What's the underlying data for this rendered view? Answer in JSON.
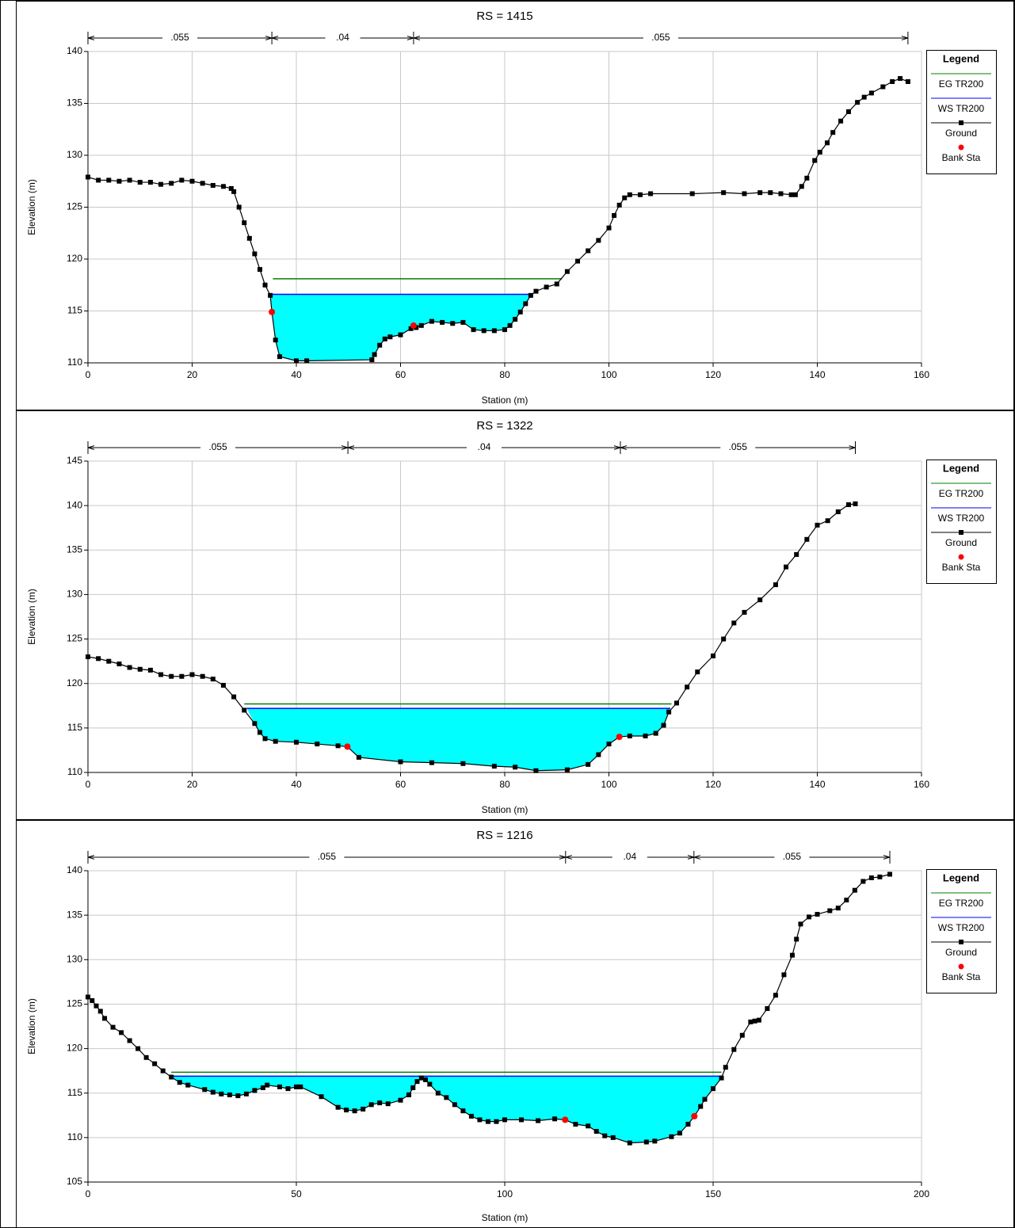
{
  "chart_data": [
    {
      "type": "line",
      "title": "RS = 1415",
      "x_label": "Station (m)",
      "y_label": "Elevation (m)",
      "xlim": [
        0,
        160
      ],
      "xticks": [
        0,
        20,
        40,
        60,
        80,
        100,
        120,
        140,
        160
      ],
      "ylim": [
        110,
        140
      ],
      "yticks": [
        110,
        115,
        120,
        125,
        130,
        135,
        140
      ],
      "grid": true,
      "legend_title": "Legend",
      "legend": "upper right",
      "n_labels": [
        ".055",
        ".04",
        ".055"
      ],
      "n_breaks": [
        0,
        35.3,
        62.5,
        157.4
      ],
      "series": [
        {
          "name": "EG TR200",
          "color": "#008000",
          "x": [
            35.5,
            91
          ],
          "values": [
            118.1,
            118.1
          ]
        },
        {
          "name": "WS TR200",
          "color": "#0000ff",
          "fill": "#00ffff",
          "x": [
            35,
            85.2
          ],
          "values": [
            116.6,
            116.6
          ]
        },
        {
          "name": "Ground",
          "color": "#000000",
          "x": [
            0,
            2,
            4,
            6,
            8,
            10,
            12,
            14,
            16,
            18,
            20,
            22,
            24,
            26,
            27.5,
            28,
            29,
            30,
            31,
            32,
            33,
            34,
            35,
            35.3,
            36,
            36.8,
            40,
            42,
            54.5,
            55,
            56,
            57,
            58,
            60,
            62,
            63,
            64,
            66,
            68,
            70,
            72,
            74,
            76,
            78,
            80,
            81,
            82,
            83,
            84,
            85,
            86,
            88,
            90,
            92,
            94,
            96,
            98,
            100,
            101,
            102,
            103,
            104,
            106,
            108,
            116,
            122,
            126,
            129,
            131,
            133,
            135,
            135.8,
            137,
            138,
            139.5,
            140.5,
            141.9,
            143,
            144.5,
            146,
            147.7,
            149,
            150.4,
            152.6,
            154.4,
            155.9,
            157.4
          ],
          "values": [
            127.9,
            127.6,
            127.6,
            127.5,
            127.6,
            127.4,
            127.4,
            127.2,
            127.3,
            127.6,
            127.5,
            127.3,
            127.1,
            127,
            126.8,
            126.5,
            125,
            123.5,
            122,
            120.5,
            119,
            117.5,
            116.5,
            114.9,
            112.2,
            110.6,
            110.2,
            110.2,
            110.3,
            110.8,
            111.7,
            112.3,
            112.5,
            112.7,
            113.3,
            113.4,
            113.6,
            114,
            113.9,
            113.8,
            113.9,
            113.2,
            113.1,
            113.1,
            113.2,
            113.6,
            114.2,
            114.9,
            115.7,
            116.5,
            116.9,
            117.3,
            117.6,
            118.8,
            119.8,
            120.8,
            121.8,
            123,
            124.2,
            125.2,
            125.9,
            126.2,
            126.2,
            126.3,
            126.3,
            126.4,
            126.3,
            126.4,
            126.4,
            126.3,
            126.2,
            126.2,
            127,
            127.8,
            129.5,
            130.3,
            131.2,
            132.2,
            133.3,
            134.2,
            135.1,
            135.6,
            136,
            136.6,
            137.1,
            137.4,
            137.1
          ]
        },
        {
          "name": "Bank Sta",
          "color": "#ff0000",
          "x": [
            35.3,
            62.5
          ],
          "values": [
            114.9,
            113.6
          ]
        }
      ]
    },
    {
      "type": "line",
      "title": "RS = 1322",
      "x_label": "Station (m)",
      "y_label": "Elevation (m)",
      "xlim": [
        0,
        160
      ],
      "xticks": [
        0,
        20,
        40,
        60,
        80,
        100,
        120,
        140,
        160
      ],
      "ylim": [
        110,
        145
      ],
      "yticks": [
        110,
        115,
        120,
        125,
        130,
        135,
        140,
        145
      ],
      "grid": true,
      "legend_title": "Legend",
      "legend": "upper right",
      "n_labels": [
        ".055",
        ".04",
        ".055"
      ],
      "n_breaks": [
        0,
        49.9,
        102.2,
        147.3
      ],
      "series": [
        {
          "name": "EG TR200",
          "color": "#008000",
          "x": [
            30,
            112
          ],
          "values": [
            117.7,
            117.7
          ]
        },
        {
          "name": "WS TR200",
          "color": "#0000ff",
          "fill": "#00ffff",
          "x": [
            30.5,
            111.8
          ],
          "values": [
            117.2,
            117.2
          ]
        },
        {
          "name": "Ground",
          "color": "#000000",
          "x": [
            0,
            2,
            4,
            6,
            8,
            10,
            12,
            14,
            16,
            18,
            20,
            22,
            24,
            26,
            28,
            30,
            32,
            33,
            34,
            36,
            40,
            44,
            48,
            49.8,
            52,
            60,
            66,
            72,
            78,
            82,
            86,
            92,
            96,
            98,
            100,
            102,
            104,
            107,
            109,
            110.5,
            111.5,
            113,
            115,
            117,
            120,
            122,
            124,
            126,
            129,
            132,
            134,
            136,
            138,
            140,
            142,
            144,
            146,
            147.3
          ],
          "values": [
            123,
            122.8,
            122.5,
            122.2,
            121.8,
            121.6,
            121.5,
            121,
            120.8,
            120.8,
            121,
            120.8,
            120.5,
            119.8,
            118.5,
            117,
            115.5,
            114.5,
            113.8,
            113.5,
            113.4,
            113.2,
            113,
            112.9,
            111.7,
            111.2,
            111.1,
            111,
            110.7,
            110.6,
            110.2,
            110.3,
            110.9,
            112,
            113.2,
            114,
            114.1,
            114.1,
            114.4,
            115.3,
            116.8,
            117.8,
            119.6,
            121.3,
            123.1,
            125,
            126.8,
            128,
            129.4,
            131.1,
            133.1,
            134.5,
            136.2,
            137.8,
            138.3,
            139.3,
            140.1,
            140.2
          ]
        },
        {
          "name": "Bank Sta",
          "color": "#ff0000",
          "x": [
            49.8,
            102
          ],
          "values": [
            112.9,
            114
          ]
        }
      ]
    },
    {
      "type": "line",
      "title": "RS = 1216",
      "x_label": "Station (m)",
      "y_label": "Elevation (m)",
      "xlim": [
        0,
        200
      ],
      "xticks": [
        0,
        50,
        100,
        150,
        200
      ],
      "ylim": [
        105,
        140
      ],
      "yticks": [
        105,
        110,
        115,
        120,
        125,
        130,
        135,
        140
      ],
      "grid": true,
      "legend_title": "Legend",
      "legend": "upper right",
      "n_labels": [
        ".055",
        ".04",
        ".055"
      ],
      "n_breaks": [
        0,
        114.6,
        145.4,
        192.4
      ],
      "series": [
        {
          "name": "EG TR200",
          "color": "#008000",
          "x": [
            20,
            152
          ],
          "values": [
            117.35,
            117.35
          ]
        },
        {
          "name": "WS TR200",
          "color": "#0000ff",
          "fill": "#00ffff",
          "x": [
            19.5,
            152.3
          ],
          "values": [
            116.9,
            116.9
          ]
        },
        {
          "name": "Ground",
          "color": "#000000",
          "x": [
            0,
            1,
            2,
            3,
            4,
            6,
            8,
            10,
            12,
            14,
            16,
            18,
            20,
            22,
            24,
            28,
            30,
            32,
            34,
            36,
            38,
            40,
            42,
            43,
            46,
            48,
            50,
            51,
            56,
            60,
            62,
            64,
            66,
            68,
            70,
            72,
            75,
            77,
            78,
            79,
            80,
            81,
            82,
            84,
            86,
            88,
            90,
            92,
            94,
            96,
            98,
            100,
            104,
            108,
            112,
            114.5,
            117,
            120,
            122,
            124,
            126,
            130,
            134,
            136,
            140,
            142,
            144,
            145.5,
            147,
            148,
            150,
            152,
            153,
            155,
            157,
            159,
            160,
            161,
            163,
            165,
            167,
            169,
            170,
            171,
            173,
            175,
            178,
            180,
            182,
            184,
            186,
            188,
            190,
            192.4
          ],
          "values": [
            125.8,
            125.4,
            124.8,
            124.2,
            123.4,
            122.4,
            121.8,
            120.9,
            120,
            119,
            118.3,
            117.5,
            116.8,
            116.2,
            115.9,
            115.4,
            115.1,
            114.9,
            114.8,
            114.7,
            114.9,
            115.3,
            115.6,
            115.9,
            115.7,
            115.5,
            115.7,
            115.7,
            114.6,
            113.4,
            113.1,
            113,
            113.2,
            113.7,
            113.9,
            113.8,
            114.2,
            114.8,
            115.6,
            116.3,
            116.7,
            116.5,
            116,
            115,
            114.5,
            113.7,
            113,
            112.4,
            112,
            111.8,
            111.8,
            112,
            112,
            111.9,
            112.1,
            112,
            111.5,
            111.3,
            110.7,
            110.2,
            110,
            109.4,
            109.5,
            109.6,
            110.1,
            110.5,
            111.5,
            112.4,
            113.5,
            114.3,
            115.5,
            116.7,
            117.9,
            119.9,
            121.5,
            123,
            123.1,
            123.2,
            124.5,
            126,
            128.3,
            130.5,
            132.3,
            134,
            134.8,
            135.1,
            135.5,
            135.8,
            136.7,
            137.8,
            138.8,
            139.2,
            139.3,
            139.6
          ]
        },
        {
          "name": "Bank Sta",
          "color": "#ff0000",
          "x": [
            114.5,
            145.5
          ],
          "values": [
            112,
            112.4
          ]
        }
      ]
    }
  ]
}
